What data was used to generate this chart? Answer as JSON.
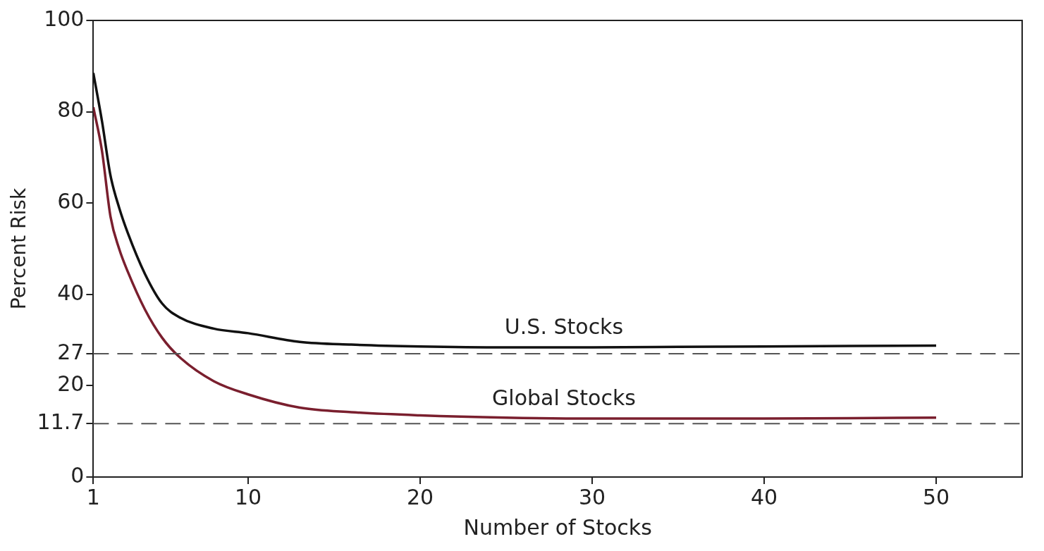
{
  "chart_data": {
    "type": "line",
    "xlabel": "Number of Stocks",
    "ylabel": "Percent Risk",
    "xlim": [
      1,
      55
    ],
    "xticks": [
      1,
      10,
      20,
      30,
      40,
      50
    ],
    "ylim": [
      0,
      100
    ],
    "yticks": [
      0,
      11.7,
      20,
      27,
      40,
      60,
      80,
      100
    ],
    "grid": false,
    "legend": false,
    "marker": "none",
    "line_style": "solid",
    "x": [
      1,
      1.5,
      2,
      2.5,
      3,
      4,
      5,
      6,
      8,
      10,
      13,
      16,
      20,
      25,
      30,
      35,
      40,
      45,
      50
    ],
    "series": [
      {
        "name": "U.S. Stocks",
        "color": "#111111",
        "values": [
          88.5,
          78,
          66,
          59,
          53.5,
          44.5,
          38,
          35,
          32.5,
          31.5,
          29.6,
          29,
          28.6,
          28.4,
          28.4,
          28.5,
          28.6,
          28.7,
          28.8
        ]
      },
      {
        "name": "Global Stocks",
        "color": "#7a1f2e",
        "values": [
          81,
          71.5,
          57,
          50,
          45,
          36.7,
          30.5,
          26.3,
          21,
          18.1,
          15.2,
          14.2,
          13.5,
          13,
          12.8,
          12.8,
          12.8,
          12.9,
          13
        ]
      }
    ],
    "ref_lines": [
      {
        "axis": "y",
        "value": 27,
        "color": "#555555",
        "line_style": "dashed"
      },
      {
        "axis": "y",
        "value": 11.7,
        "color": "#555555",
        "line_style": "dashed"
      }
    ]
  }
}
